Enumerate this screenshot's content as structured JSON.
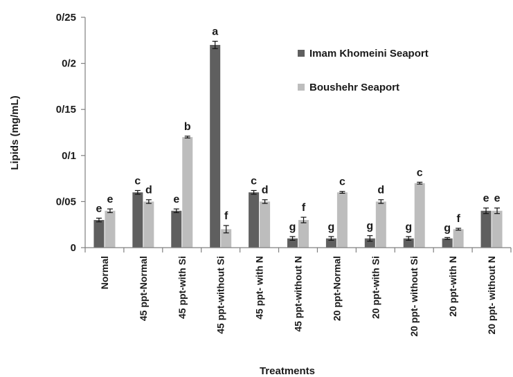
{
  "chart_data": {
    "type": "bar",
    "title": "",
    "xlabel": "Treatments",
    "ylabel": "Lipids (mg/mL)",
    "ylim": [
      0,
      0.25
    ],
    "yticks": [
      {
        "value": 0,
        "label": "0"
      },
      {
        "value": 0.05,
        "label": "0/05"
      },
      {
        "value": 0.1,
        "label": "0/1"
      },
      {
        "value": 0.15,
        "label": "0/15"
      },
      {
        "value": 0.2,
        "label": "0/2"
      },
      {
        "value": 0.25,
        "label": "0/25"
      }
    ],
    "categories": [
      "Normal",
      "45 ppt-Normal",
      "45 ppt-with Si",
      "45 ppt-without Si",
      "45 ppt- with N",
      "45 ppt-without N",
      "20 ppt-Normal",
      "20 ppt-with Si",
      "20 ppt- without Si",
      "20 ppt-with N",
      "20 ppt- without N"
    ],
    "series": [
      {
        "name": "Imam Khomeini Seaport",
        "color": "#5f5f5f",
        "values": [
          0.03,
          0.06,
          0.04,
          0.22,
          0.06,
          0.01,
          0.01,
          0.01,
          0.01,
          0.01,
          0.04
        ],
        "errors": [
          0.002,
          0.002,
          0.002,
          0.004,
          0.002,
          0.002,
          0.002,
          0.003,
          0.002,
          0.001,
          0.003
        ],
        "letters": [
          "e",
          "c",
          "e",
          "a",
          "c",
          "g",
          "g",
          "g",
          "g",
          "g",
          "e"
        ]
      },
      {
        "name": "Boushehr Seaport",
        "color": "#bdbdbd",
        "values": [
          0.04,
          0.05,
          0.12,
          0.02,
          0.05,
          0.03,
          0.06,
          0.05,
          0.07,
          0.02,
          0.04
        ],
        "errors": [
          0.002,
          0.002,
          0.001,
          0.004,
          0.002,
          0.003,
          0.001,
          0.002,
          0.001,
          0.001,
          0.003
        ],
        "letters": [
          "e",
          "d",
          "b",
          "f",
          "d",
          "f",
          "c",
          "d",
          "c",
          "f",
          "e"
        ]
      }
    ],
    "legend": "top-right",
    "grid": false
  }
}
